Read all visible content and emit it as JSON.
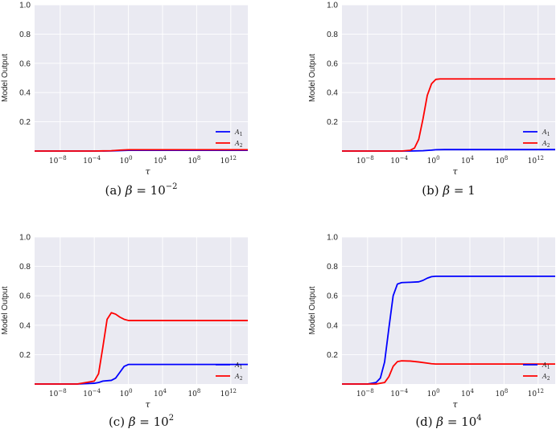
{
  "chart_data": [
    {
      "type": "line",
      "caption": "(a) β = 10^-2",
      "caption_parts": [
        "(a) ",
        "β",
        " = 10",
        "−2"
      ],
      "xlabel": "τ",
      "ylabel": "Model Output",
      "xscale": "log10",
      "xlim_exp": [
        -11,
        14
      ],
      "ylim": [
        0,
        1.0
      ],
      "yticks": [
        "0.2",
        "0.4",
        "0.6",
        "0.8",
        "1.0"
      ],
      "xticks_exp": [
        "-8",
        "-4",
        "0",
        "4",
        "8",
        "12"
      ],
      "legend": "bottom-right",
      "series": [
        {
          "name": "A1",
          "label_base": "A",
          "label_sub": "1",
          "color": "#0000ff",
          "x_exp": [
            -11,
            -4,
            -2,
            -1,
            0,
            14
          ],
          "y": [
            0.0,
            0.0,
            0.001,
            0.003,
            0.005,
            0.005
          ]
        },
        {
          "name": "A2",
          "label_base": "A",
          "label_sub": "2",
          "color": "#ff0000",
          "x_exp": [
            -11,
            -4,
            -2,
            -1,
            0,
            14
          ],
          "y": [
            0.0,
            0.0,
            0.002,
            0.006,
            0.009,
            0.009
          ]
        }
      ]
    },
    {
      "type": "line",
      "caption": "(b) β = 1",
      "caption_parts": [
        "(b) ",
        "β",
        " = 1",
        ""
      ],
      "xlabel": "τ",
      "ylabel": "Model Output",
      "xscale": "log10",
      "xlim_exp": [
        -11,
        14
      ],
      "ylim": [
        0,
        1.0
      ],
      "yticks": [
        "0.2",
        "0.4",
        "0.6",
        "0.8",
        "1.0"
      ],
      "xticks_exp": [
        "-8",
        "-4",
        "0",
        "4",
        "8",
        "12"
      ],
      "legend": "bottom-right",
      "series": [
        {
          "name": "A1",
          "label_base": "A",
          "label_sub": "1",
          "color": "#0000ff",
          "x_exp": [
            -11,
            -3,
            -1.5,
            -0.5,
            0,
            1,
            14
          ],
          "y": [
            0.0,
            0.0,
            0.002,
            0.006,
            0.009,
            0.01,
            0.01
          ]
        },
        {
          "name": "A2",
          "label_base": "A",
          "label_sub": "2",
          "color": "#ff0000",
          "x_exp": [
            -11,
            -4,
            -3,
            -2.5,
            -2,
            -1.5,
            -1,
            -0.5,
            0,
            0.5,
            14
          ],
          "y": [
            0.0,
            0.0,
            0.005,
            0.02,
            0.08,
            0.22,
            0.38,
            0.46,
            0.49,
            0.493,
            0.493
          ]
        }
      ]
    },
    {
      "type": "line",
      "caption": "(c) β = 10^2",
      "caption_parts": [
        "(c) ",
        "β",
        " = 10",
        "2"
      ],
      "xlabel": "τ",
      "ylabel": "Model Output",
      "xscale": "log10",
      "xlim_exp": [
        -11,
        14
      ],
      "ylim": [
        0,
        1.0
      ],
      "yticks": [
        "0.2",
        "0.4",
        "0.6",
        "0.8",
        "1.0"
      ],
      "xticks_exp": [
        "-8",
        "-4",
        "0",
        "4",
        "8",
        "12"
      ],
      "legend": "bottom-right",
      "series": [
        {
          "name": "A1",
          "label_base": "A",
          "label_sub": "1",
          "color": "#0000ff",
          "x_exp": [
            -11,
            -6,
            -4,
            -3.5,
            -3,
            -2,
            -1.5,
            -1,
            -0.5,
            0,
            1,
            14
          ],
          "y": [
            0.0,
            0.0,
            0.005,
            0.01,
            0.02,
            0.025,
            0.04,
            0.08,
            0.12,
            0.133,
            0.133,
            0.133
          ]
        },
        {
          "name": "A2",
          "label_base": "A",
          "label_sub": "2",
          "color": "#ff0000",
          "x_exp": [
            -11,
            -6,
            -4,
            -3.5,
            -3,
            -2.5,
            -2,
            -1.5,
            -1,
            -0.5,
            0,
            1,
            14
          ],
          "y": [
            0.0,
            0.0,
            0.02,
            0.07,
            0.25,
            0.44,
            0.485,
            0.475,
            0.455,
            0.44,
            0.432,
            0.432,
            0.432
          ]
        }
      ]
    },
    {
      "type": "line",
      "caption": "(d) β = 10^4",
      "caption_parts": [
        "(d) ",
        "β",
        " = 10",
        "4"
      ],
      "xlabel": "τ",
      "ylabel": "Model Output",
      "xscale": "log10",
      "xlim_exp": [
        -11,
        14
      ],
      "ylim": [
        0,
        1.0
      ],
      "yticks": [
        "0.2",
        "0.4",
        "0.6",
        "0.8",
        "1.0"
      ],
      "xticks_exp": [
        "-8",
        "-4",
        "0",
        "4",
        "8",
        "12"
      ],
      "legend": "bottom-right",
      "series": [
        {
          "name": "A1",
          "label_base": "A",
          "label_sub": "1",
          "color": "#0000ff",
          "x_exp": [
            -11,
            -8,
            -7,
            -6.5,
            -6,
            -5.5,
            -5,
            -4.5,
            -4,
            -3,
            -2,
            -1.5,
            -1,
            -0.5,
            0,
            1,
            14
          ],
          "y": [
            0.0,
            0.0,
            0.01,
            0.04,
            0.15,
            0.38,
            0.6,
            0.68,
            0.69,
            0.692,
            0.695,
            0.705,
            0.72,
            0.73,
            0.733,
            0.733,
            0.733
          ]
        },
        {
          "name": "A2",
          "label_base": "A",
          "label_sub": "2",
          "color": "#ff0000",
          "x_exp": [
            -11,
            -7,
            -6,
            -5.5,
            -5,
            -4.5,
            -4,
            -3,
            -2,
            -1,
            -0.5,
            0,
            1,
            14
          ],
          "y": [
            0.0,
            0.0,
            0.01,
            0.05,
            0.12,
            0.152,
            0.158,
            0.156,
            0.15,
            0.142,
            0.138,
            0.136,
            0.136,
            0.136
          ]
        }
      ]
    }
  ]
}
